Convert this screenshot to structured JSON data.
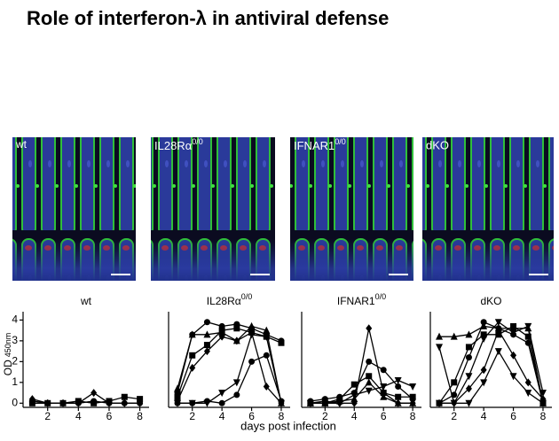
{
  "title": "Role of interferon-λ   in antiviral defense",
  "panels": [
    {
      "text": "wt"
    },
    {
      "text": "IL28Rα",
      "sup": "0/0"
    },
    {
      "text": "IFNAR1",
      "sup": "0/0"
    },
    {
      "text": "dKO"
    }
  ],
  "y_label": {
    "text": "OD",
    "sub": "450nm"
  },
  "x_label": "days post infection",
  "chart_data": [
    {
      "type": "line",
      "title": "wt",
      "x": [
        1,
        2,
        3,
        4,
        5,
        6,
        7,
        8
      ],
      "xlim": [
        0.4,
        8.6
      ],
      "xticks": [
        2,
        4,
        6,
        8
      ],
      "ylim": [
        -0.2,
        4.4
      ],
      "yticks": [
        0,
        1,
        2,
        3,
        4
      ],
      "series": [
        {
          "color": "#000000",
          "marker": "diamond",
          "values": [
            0.2,
            0,
            0,
            0,
            0.5,
            0,
            0,
            0
          ]
        },
        {
          "color": "#000000",
          "marker": "square",
          "values": [
            0,
            0,
            0,
            0.1,
            0,
            0.1,
            0.3,
            0.2
          ]
        },
        {
          "color": "#000000",
          "marker": "circle",
          "values": [
            0.1,
            0,
            0,
            0,
            0.1,
            0,
            0,
            0
          ]
        }
      ]
    },
    {
      "type": "line",
      "title": "IL28Rα",
      "title_sup": "0/0",
      "x": [
        1,
        2,
        3,
        4,
        5,
        6,
        7,
        8
      ],
      "xlim": [
        0.4,
        8.6
      ],
      "xticks": [
        2,
        4,
        6,
        8
      ],
      "ylim": [
        -0.2,
        4.4
      ],
      "series": [
        {
          "color": "#000000",
          "marker": "circle",
          "values": [
            0.5,
            3.3,
            3.9,
            3.7,
            3.8,
            3.6,
            3.3,
            3.0
          ]
        },
        {
          "color": "#000000",
          "marker": "square",
          "values": [
            0.3,
            2.3,
            2.8,
            3.5,
            3.6,
            3.4,
            3.2,
            2.9
          ]
        },
        {
          "color": "#000000",
          "marker": "triangle",
          "values": [
            0.7,
            3.3,
            3.3,
            3.4,
            3.0,
            3.7,
            3.5,
            0
          ]
        },
        {
          "color": "#000000",
          "marker": "diamond",
          "values": [
            0.1,
            1.7,
            2.5,
            3.2,
            3.0,
            3.4,
            0.8,
            0
          ]
        },
        {
          "color": "#000000",
          "marker": "triangle-down",
          "values": [
            0,
            0,
            0,
            0.5,
            1.0,
            3.3,
            3.2,
            0
          ]
        },
        {
          "color": "#000000",
          "marker": "circle",
          "values": [
            0,
            0,
            0.1,
            0,
            0.4,
            2.0,
            2.3,
            0.1
          ]
        }
      ]
    },
    {
      "type": "line",
      "title": "IFNAR1",
      "title_sup": "0/0",
      "x": [
        1,
        2,
        3,
        4,
        5,
        6,
        7,
        8
      ],
      "xlim": [
        0.4,
        8.6
      ],
      "xticks": [
        2,
        4,
        6,
        8
      ],
      "ylim": [
        -0.2,
        4.4
      ],
      "series": [
        {
          "color": "#000000",
          "marker": "diamond",
          "values": [
            0,
            0,
            0,
            0,
            3.6,
            0.5,
            0,
            0
          ]
        },
        {
          "color": "#000000",
          "marker": "circle",
          "values": [
            0.1,
            0.2,
            0.3,
            0.5,
            2.0,
            1.6,
            0.8,
            0.2
          ]
        },
        {
          "color": "#000000",
          "marker": "square",
          "values": [
            0,
            0,
            0.2,
            0.9,
            1.3,
            0.5,
            0.3,
            0.3
          ]
        },
        {
          "color": "#000000",
          "marker": "triangle-down",
          "values": [
            0,
            0.1,
            0,
            0.4,
            0.6,
            0.8,
            1.1,
            0.8
          ]
        },
        {
          "color": "#000000",
          "marker": "triangle",
          "values": [
            0,
            0,
            0.1,
            0.2,
            1.0,
            0.3,
            0,
            0
          ]
        }
      ]
    },
    {
      "type": "line",
      "title": "dKO",
      "x": [
        1,
        2,
        3,
        4,
        5,
        6,
        7,
        8
      ],
      "xlim": [
        0.4,
        8.6
      ],
      "xticks": [
        2,
        4,
        6,
        8
      ],
      "ylim": [
        -0.2,
        4.4
      ],
      "series": [
        {
          "color": "#000000",
          "marker": "triangle",
          "values": [
            3.2,
            3.2,
            3.3,
            3.7,
            3.6,
            3.6,
            3.6,
            0
          ]
        },
        {
          "color": "#000000",
          "marker": "triangle-down",
          "values": [
            2.7,
            0,
            1.3,
            3.1,
            3.9,
            3.4,
            3.7,
            0.5
          ]
        },
        {
          "color": "#000000",
          "marker": "circle",
          "values": [
            0,
            0.4,
            2.2,
            3.9,
            3.6,
            3.3,
            2.9,
            0
          ]
        },
        {
          "color": "#000000",
          "marker": "square",
          "values": [
            0,
            1.0,
            2.7,
            3.3,
            3.3,
            3.7,
            3.2,
            0
          ]
        },
        {
          "color": "#000000",
          "marker": "diamond",
          "values": [
            0,
            0,
            0.7,
            1.6,
            3.5,
            2.3,
            1.0,
            0.2
          ]
        },
        {
          "color": "#000000",
          "marker": "triangle-down",
          "values": [
            0,
            0,
            0,
            1.0,
            2.5,
            1.3,
            0.5,
            0
          ]
        }
      ]
    }
  ]
}
